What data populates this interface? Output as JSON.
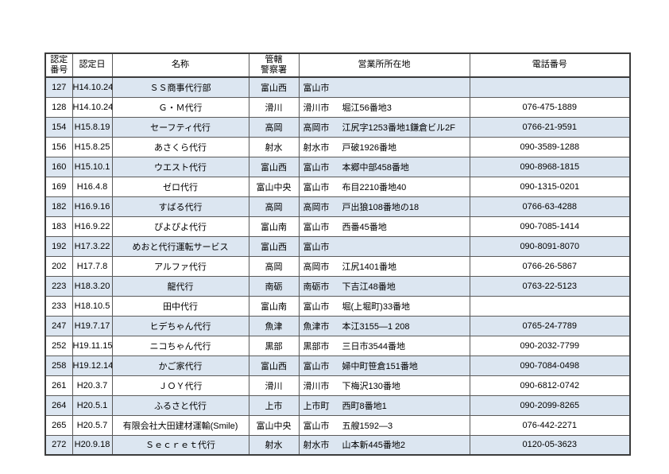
{
  "table": {
    "headers": {
      "cert_no_line1": "認定",
      "cert_no_line2": "番号",
      "cert_date": "認定日",
      "name": "名称",
      "police_line1": "管轄",
      "police_line2": "警察署",
      "office": "営業所所在地",
      "phone": "電話番号"
    },
    "rows": [
      {
        "no": "127",
        "date": "H14.10.24",
        "name": "ＳＳ商事代行部",
        "police": "富山西",
        "city": "富山市",
        "address": "",
        "phone": ""
      },
      {
        "no": "128",
        "date": "H14.10.24",
        "name": "Ｇ・Ｍ代行",
        "police": "滑川",
        "city": "滑川市",
        "address": "堀江56番地3",
        "phone": "076-475-1889"
      },
      {
        "no": "154",
        "date": "H15.8.19",
        "name": "セーフティ代行",
        "police": "高岡",
        "city": "高岡市",
        "address": "江尻字1253番地1鎌倉ビル2F",
        "phone": "0766-21-9591"
      },
      {
        "no": "156",
        "date": "H15.8.25",
        "name": "あさくら代行",
        "police": "射水",
        "city": "射水市",
        "address": "戸破1926番地",
        "phone": "090-3589-1288"
      },
      {
        "no": "160",
        "date": "H15.10.1",
        "name": "ウエスト代行",
        "police": "富山西",
        "city": "富山市",
        "address": "本郷中部458番地",
        "phone": "090-8968-1815"
      },
      {
        "no": "169",
        "date": "H16.4.8",
        "name": "ゼロ代行",
        "police": "富山中央",
        "city": "富山市",
        "address": "布目2210番地40",
        "phone": "090-1315-0201"
      },
      {
        "no": "182",
        "date": "H16.9.16",
        "name": "すばる代行",
        "police": "高岡",
        "city": "高岡市",
        "address": "戸出狼108番地の18",
        "phone": "0766-63-4288"
      },
      {
        "no": "183",
        "date": "H16.9.22",
        "name": "ぴよぴよ代行",
        "police": "富山南",
        "city": "富山市",
        "address": "西番45番地",
        "phone": "090-7085-1414"
      },
      {
        "no": "192",
        "date": "H17.3.22",
        "name": "めおと代行運転サービス",
        "police": "富山西",
        "city": "富山市",
        "address": "",
        "phone": "090-8091-8070"
      },
      {
        "no": "202",
        "date": "H17.7.8",
        "name": "アルファ代行",
        "police": "高岡",
        "city": "高岡市",
        "address": "江尻1401番地",
        "phone": "0766-26-5867"
      },
      {
        "no": "223",
        "date": "H18.3.20",
        "name": "龍代行",
        "police": "南砺",
        "city": "南砺市",
        "address": "下吉江48番地",
        "phone": "0763-22-5123"
      },
      {
        "no": "233",
        "date": "H18.10.5",
        "name": "田中代行",
        "police": "富山南",
        "city": "富山市",
        "address": "堀(上堀町)33番地",
        "phone": ""
      },
      {
        "no": "247",
        "date": "H19.7.17",
        "name": "ヒデちゃん代行",
        "police": "魚津",
        "city": "魚津市",
        "address": "本江3155—1 208",
        "phone": "0765-24-7789"
      },
      {
        "no": "252",
        "date": "H19.11.15",
        "name": "ニコちゃん代行",
        "police": "黒部",
        "city": "黒部市",
        "address": "三日市3544番地",
        "phone": "090-2032-7799"
      },
      {
        "no": "258",
        "date": "H19.12.14",
        "name": "かご家代行",
        "police": "富山西",
        "city": "富山市",
        "address": "婦中町笹倉151番地",
        "phone": "090-7084-0498"
      },
      {
        "no": "261",
        "date": "H20.3.7",
        "name": "ＪＯＹ代行",
        "police": "滑川",
        "city": "滑川市",
        "address": "下梅沢130番地",
        "phone": "090-6812-0742"
      },
      {
        "no": "264",
        "date": "H20.5.1",
        "name": "ふるさと代行",
        "police": "上市",
        "city": "上市町",
        "address": "西町8番地1",
        "phone": "090-2099-8265"
      },
      {
        "no": "265",
        "date": "H20.5.7",
        "name": "有限会社大田建材運輸(Smile)",
        "police": "富山中央",
        "city": "富山市",
        "address": "五艘1592—3",
        "phone": "076-442-2271"
      },
      {
        "no": "272",
        "date": "H20.9.18",
        "name": "Ｓｅｃｒｅｔ代行",
        "police": "射水",
        "city": "射水市",
        "address": "山本新445番地2",
        "phone": "0120-05-3623"
      }
    ]
  },
  "colors": {
    "row_shade": "#dce6f1",
    "border_inner": "#5a5a5a",
    "border_outer": "#3c3c3c",
    "background": "#ffffff"
  }
}
